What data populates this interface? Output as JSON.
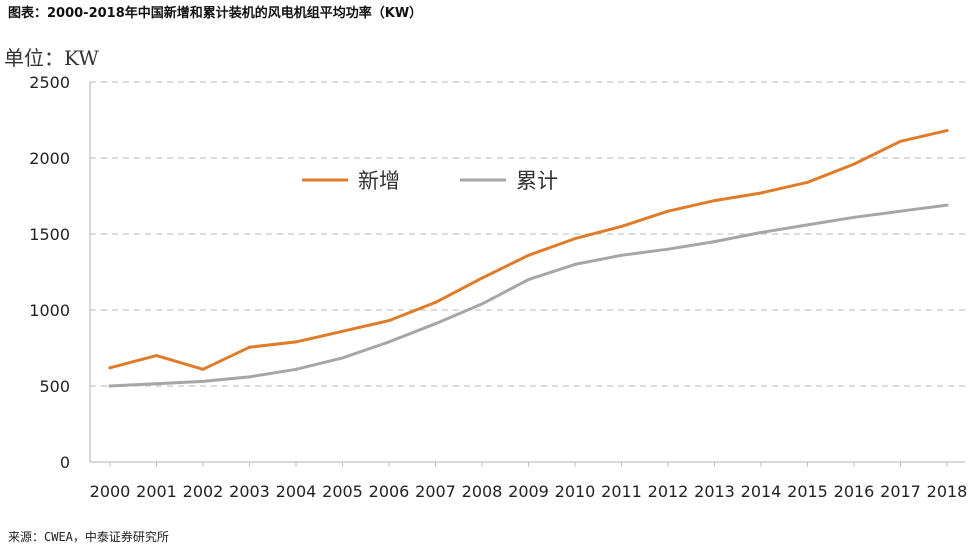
{
  "header": {
    "title": "图表：2000-2018年中国新增和累计装机的风电机组平均功率（KW）",
    "unit": "单位：KW"
  },
  "footer": {
    "source": "来源：CWEA，中泰证券研究所"
  },
  "chart_data": {
    "type": "line",
    "title": "图表：2000-2018年中国新增和累计装机的风电机组平均功率（KW）",
    "ylabel": "单位：KW",
    "xlabel": "",
    "x": [
      "2000",
      "2001",
      "2002",
      "2003",
      "2004",
      "2005",
      "2006",
      "2007",
      "2008",
      "2009",
      "2010",
      "2011",
      "2012",
      "2013",
      "2014",
      "2015",
      "2016",
      "2017",
      "2018"
    ],
    "ylim": [
      0,
      2500
    ],
    "yticks": [
      0,
      500,
      1000,
      1500,
      2000,
      2500
    ],
    "grid": true,
    "legend_position": "top-center",
    "series": [
      {
        "name": "新增",
        "color": "#e07b2a",
        "values": [
          620,
          700,
          610,
          755,
          790,
          860,
          930,
          1050,
          1210,
          1360,
          1470,
          1550,
          1650,
          1720,
          1770,
          1840,
          1960,
          2110,
          2180
        ]
      },
      {
        "name": "累计",
        "color": "#a6a6a6",
        "values": [
          500,
          515,
          530,
          560,
          610,
          685,
          790,
          910,
          1040,
          1200,
          1300,
          1360,
          1400,
          1450,
          1510,
          1560,
          1610,
          1650,
          1690
        ]
      }
    ]
  }
}
